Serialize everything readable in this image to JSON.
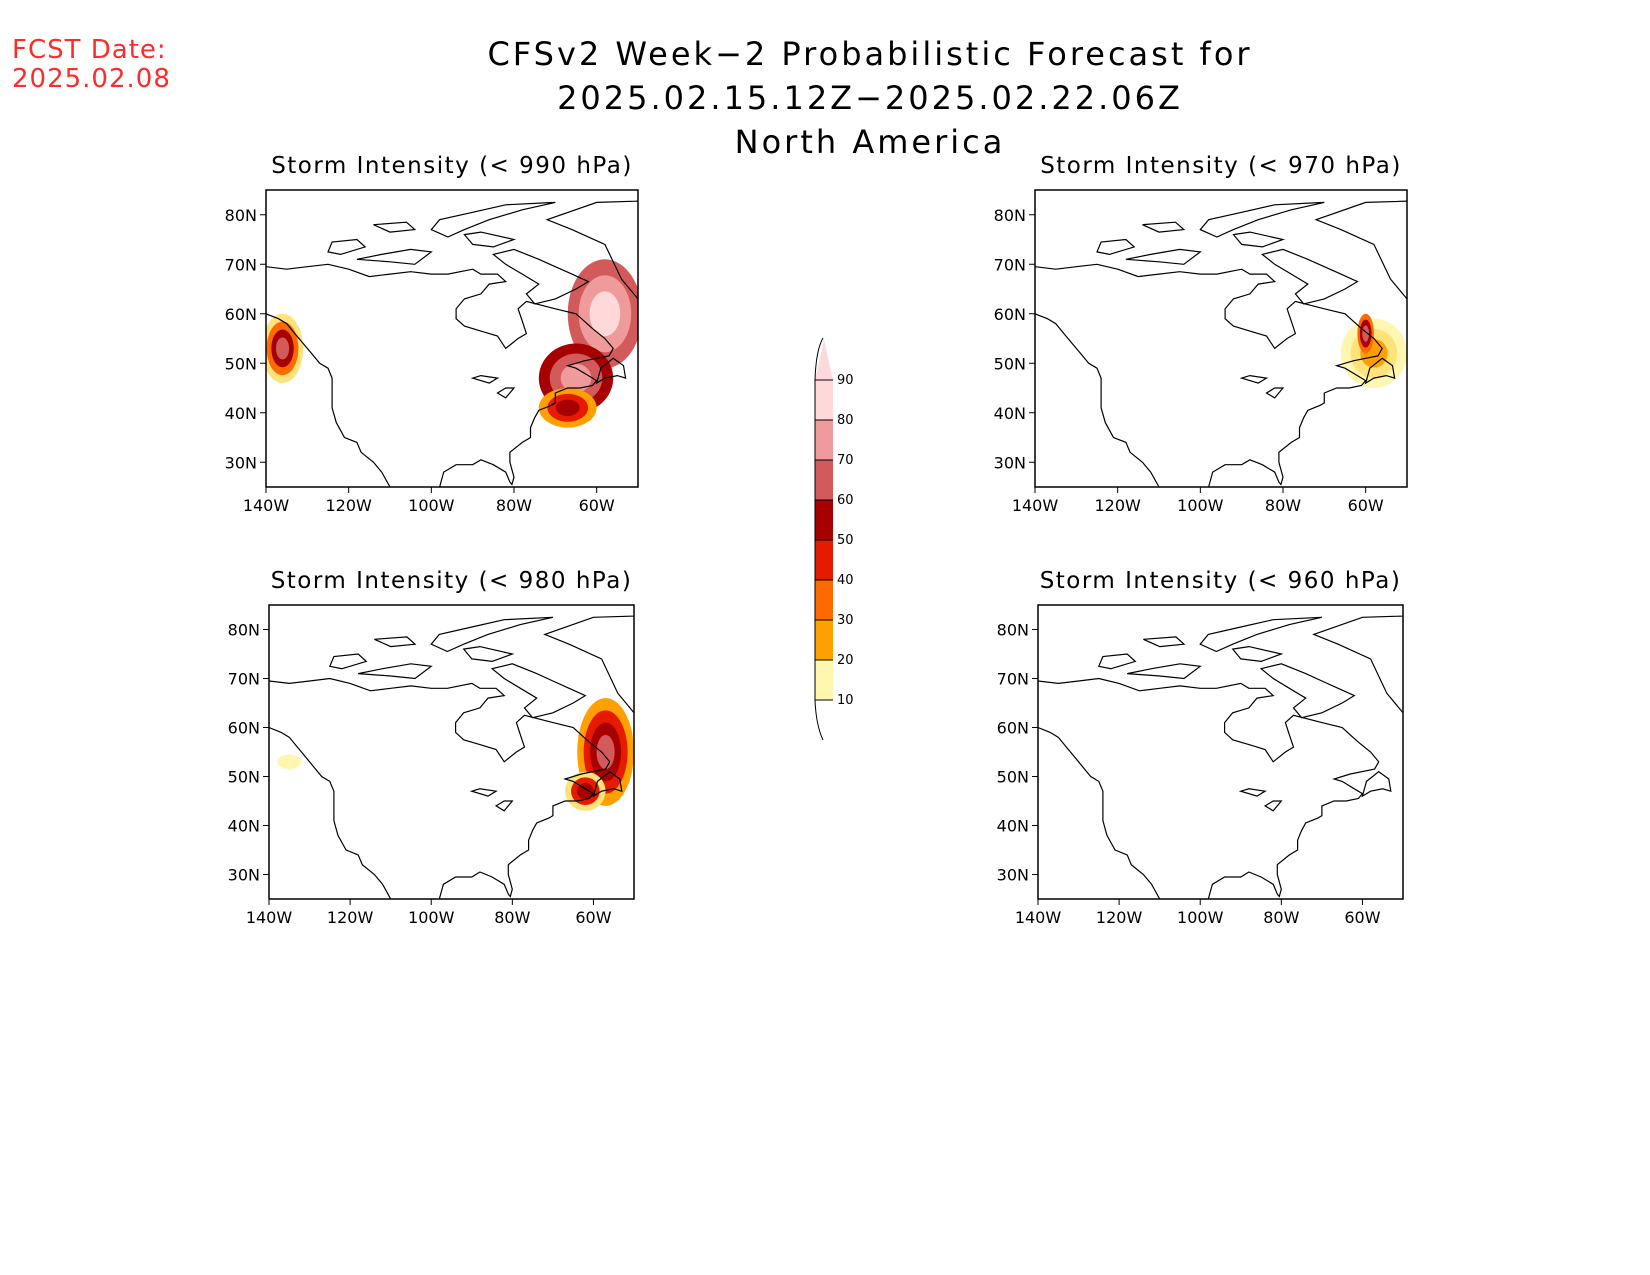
{
  "fcst_date": {
    "label": "FCST Date:",
    "value": "2025.02.08"
  },
  "title": {
    "line1": "CFSv2 Week−2 Probabilistic Forecast for 2025.02.15.12Z−2025.02.22.06Z",
    "line2": "North America"
  },
  "axes": {
    "lat_labels": [
      "80N",
      "70N",
      "60N",
      "50N",
      "40N",
      "30N"
    ],
    "lat_values": [
      80,
      70,
      60,
      50,
      40,
      30
    ],
    "lon_labels": [
      "140W",
      "120W",
      "100W",
      "80W",
      "60W"
    ],
    "lon_values": [
      -140,
      -120,
      -100,
      -80,
      -60
    ]
  },
  "colorbar": {
    "ticks": [
      "10",
      "20",
      "30",
      "40",
      "50",
      "60",
      "70",
      "80",
      "90"
    ],
    "colors": [
      "#fff7b0",
      "#ffe37a",
      "#ffa000",
      "#ff6a00",
      "#e61a00",
      "#a60000",
      "#d35a5a",
      "#ef9b9b",
      "#ffd9d9"
    ]
  },
  "panels": [
    {
      "id": "990",
      "title": "Storm Intensity (< 990 hPa)",
      "blobs": [
        {
          "lon": -136,
          "lat": 53,
          "rx": 5,
          "ry": 7,
          "levels": [
            20,
            40,
            60,
            70
          ]
        },
        {
          "lon": -58,
          "lat": 60,
          "rx": 9,
          "ry": 11,
          "levels": [
            70,
            80,
            90
          ]
        },
        {
          "lon": -65,
          "lat": 47,
          "rx": 9,
          "ry": 7,
          "levels": [
            60,
            70,
            80
          ]
        },
        {
          "lon": -67,
          "lat": 41,
          "rx": 7,
          "ry": 4,
          "levels": [
            30,
            50,
            60
          ]
        }
      ]
    },
    {
      "id": "970",
      "title": "Storm Intensity (< 970 hPa)",
      "blobs": [
        {
          "lon": -58,
          "lat": 52,
          "rx": 8,
          "ry": 7,
          "levels": [
            10,
            20,
            30
          ]
        },
        {
          "lon": -60,
          "lat": 56,
          "rx": 2,
          "ry": 4,
          "levels": [
            40,
            60,
            70
          ]
        }
      ]
    },
    {
      "id": "980",
      "title": "Storm Intensity (< 980 hPa)",
      "blobs": [
        {
          "lon": -135,
          "lat": 53,
          "rx": 3,
          "ry": 1.5,
          "levels": [
            10
          ]
        },
        {
          "lon": -57,
          "lat": 55,
          "rx": 7,
          "ry": 11,
          "levels": [
            30,
            50,
            60,
            70
          ]
        },
        {
          "lon": -62,
          "lat": 47,
          "rx": 5,
          "ry": 4,
          "levels": [
            20,
            50,
            60
          ]
        }
      ]
    },
    {
      "id": "960",
      "title": "Storm Intensity (< 960 hPa)",
      "blobs": []
    }
  ]
}
